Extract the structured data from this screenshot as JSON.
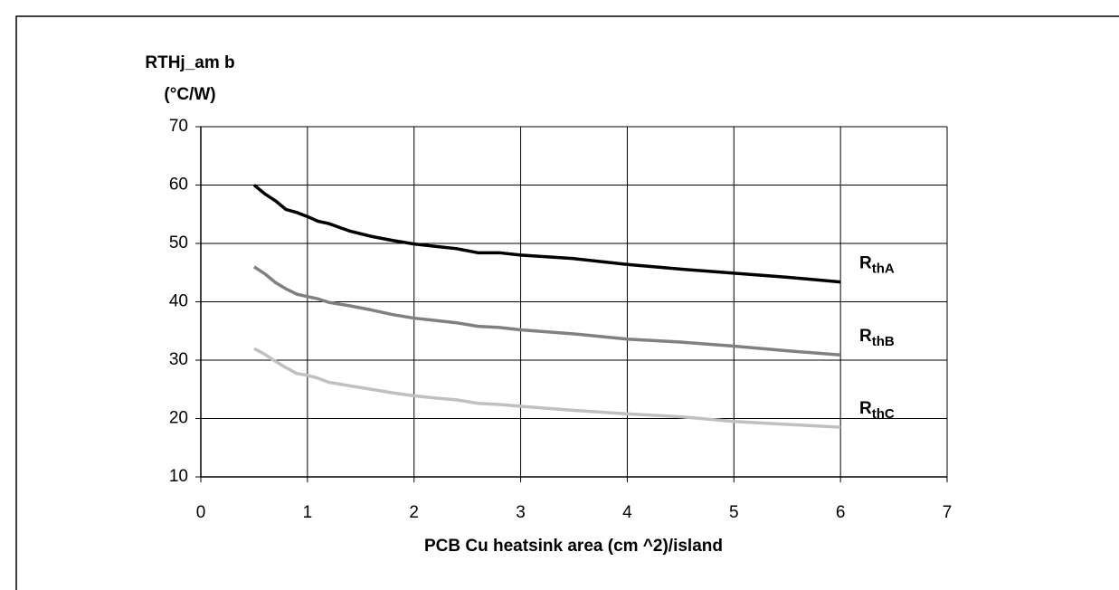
{
  "chart_data": {
    "type": "line",
    "ylabel": [
      "RTHj_am b",
      "(°C/W)"
    ],
    "xlabel": "PCB Cu heatsink area (cm ^2)/island",
    "x": [
      0.5,
      0.6,
      0.7,
      0.8,
      0.9,
      1,
      1.1,
      1.2,
      1.4,
      1.6,
      1.8,
      2,
      2.2,
      2.4,
      2.6,
      2.8,
      3,
      3.5,
      4,
      4.5,
      5,
      5.5,
      6
    ],
    "series": [
      {
        "name": "R",
        "subscript": "thA",
        "color": "#000000",
        "values": [
          60,
          58.5,
          57.3,
          55.8,
          55.3,
          54.6,
          53.8,
          53.4,
          52.1,
          51.2,
          50.5,
          49.9,
          49.5,
          49.1,
          48.4,
          48.4,
          48.0,
          47.4,
          46.4,
          45.6,
          44.9,
          44.2,
          43.4
        ]
      },
      {
        "name": "R",
        "subscript": "thB",
        "color": "#808080",
        "values": [
          46,
          44.8,
          43.3,
          42.2,
          41.3,
          40.9,
          40.5,
          39.9,
          39.3,
          38.6,
          37.8,
          37.2,
          36.8,
          36.4,
          35.8,
          35.6,
          35.2,
          34.5,
          33.6,
          33.1,
          32.4,
          31.6,
          30.9
        ]
      },
      {
        "name": "R",
        "subscript": "thC",
        "color": "#c0c0c0",
        "values": [
          32,
          31,
          29.8,
          28.7,
          27.7,
          27.4,
          26.9,
          26.2,
          25.6,
          25,
          24.4,
          23.9,
          23.5,
          23.2,
          22.6,
          22.4,
          22.1,
          21.4,
          20.8,
          20.3,
          19.5,
          19,
          18.5
        ]
      }
    ],
    "xlim": [
      0,
      7
    ],
    "xticks": [
      0,
      1,
      2,
      3,
      4,
      5,
      6,
      7
    ],
    "ylim": [
      10,
      70
    ],
    "yticks": [
      10,
      20,
      30,
      40,
      50,
      60,
      70
    ],
    "grid": true
  }
}
